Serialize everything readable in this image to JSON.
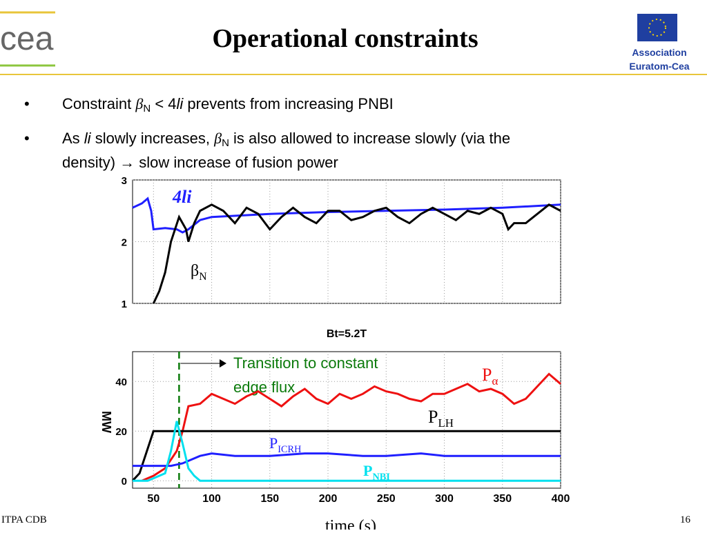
{
  "header": {
    "title": "Operational constraints",
    "logo": "cea",
    "association": [
      "Association",
      "Euratom-Cea"
    ]
  },
  "bullets": [
    [
      "Constraint ",
      "β",
      "N",
      " < 4",
      "li",
      " prevents from increasing PNBI"
    ],
    [
      "As ",
      "li",
      " slowly increases, ",
      "β",
      "N",
      " is also allowed to increase slowly (via the",
      "density) ",
      "→",
      " slow increase of fusion power"
    ]
  ],
  "footer": {
    "left": "ITPA CDB",
    "page": "16"
  },
  "chart_data": [
    {
      "type": "line",
      "xlim": [
        32,
        400
      ],
      "ylim": [
        1,
        3
      ],
      "yticks": [
        1,
        2,
        3
      ],
      "grid": true,
      "series": [
        {
          "name": "4li",
          "color": "#1f1fff",
          "x": [
            32,
            40,
            45,
            48,
            50,
            60,
            70,
            75,
            80,
            90,
            100,
            150,
            200,
            250,
            300,
            350,
            400
          ],
          "values": [
            2.55,
            2.62,
            2.7,
            2.5,
            2.2,
            2.22,
            2.2,
            2.15,
            2.2,
            2.35,
            2.4,
            2.45,
            2.48,
            2.5,
            2.52,
            2.55,
            2.6
          ]
        },
        {
          "name": "β",
          "name_sub": "N",
          "color": "#000000",
          "x": [
            50,
            55,
            60,
            65,
            72,
            78,
            80,
            85,
            90,
            100,
            110,
            120,
            130,
            140,
            150,
            160,
            170,
            180,
            190,
            200,
            210,
            220,
            230,
            240,
            250,
            260,
            270,
            280,
            290,
            300,
            310,
            320,
            330,
            340,
            350,
            355,
            360,
            370,
            380,
            390,
            400
          ],
          "values": [
            1.0,
            1.2,
            1.5,
            2.0,
            2.4,
            2.2,
            2.0,
            2.3,
            2.5,
            2.6,
            2.5,
            2.3,
            2.55,
            2.45,
            2.2,
            2.4,
            2.55,
            2.4,
            2.3,
            2.5,
            2.5,
            2.35,
            2.4,
            2.5,
            2.55,
            2.4,
            2.3,
            2.45,
            2.55,
            2.45,
            2.35,
            2.5,
            2.45,
            2.55,
            2.45,
            2.2,
            2.3,
            2.3,
            2.45,
            2.6,
            2.5
          ]
        }
      ]
    },
    {
      "type": "line",
      "title": "Bt=5.2T",
      "ylabel": "MW",
      "xlabel": "time (s)",
      "xlim": [
        32,
        400
      ],
      "ylim": [
        -3,
        52
      ],
      "xticks": [
        50,
        100,
        150,
        200,
        250,
        300,
        350,
        400
      ],
      "yticks": [
        0,
        20,
        40
      ],
      "grid": true,
      "annotation": {
        "text": [
          "Transition to constant",
          "edge flux"
        ],
        "color": "#0b7a0b",
        "x": 72
      },
      "series": [
        {
          "name": "P",
          "name_sub": "α",
          "color": "#ee1111",
          "x": [
            40,
            50,
            60,
            70,
            75,
            80,
            90,
            100,
            110,
            120,
            130,
            140,
            150,
            160,
            170,
            180,
            190,
            200,
            210,
            220,
            230,
            240,
            250,
            260,
            270,
            280,
            290,
            300,
            310,
            320,
            330,
            340,
            350,
            360,
            370,
            380,
            390,
            400
          ],
          "values": [
            0,
            2,
            5,
            12,
            20,
            30,
            31,
            35,
            33,
            31,
            34,
            36,
            33,
            30,
            34,
            37,
            33,
            31,
            35,
            33,
            35,
            38,
            36,
            35,
            33,
            32,
            35,
            35,
            37,
            39,
            36,
            37,
            35,
            31,
            33,
            38,
            43,
            39
          ]
        },
        {
          "name": "P",
          "name_sub": "LH",
          "color": "#000000",
          "x": [
            32,
            38,
            50,
            400
          ],
          "values": [
            0,
            3,
            20,
            20
          ]
        },
        {
          "name": "P",
          "name_sub": "ICRH",
          "color": "#1f1fff",
          "x": [
            32,
            65,
            75,
            80,
            90,
            100,
            120,
            150,
            180,
            200,
            230,
            250,
            280,
            300,
            330,
            350,
            380,
            400
          ],
          "values": [
            6,
            6,
            7,
            8,
            10,
            11,
            10,
            10,
            11,
            11,
            10,
            10,
            11,
            10,
            10,
            10,
            10,
            10
          ]
        },
        {
          "name": "P",
          "name_sub": "NBI",
          "color": "#00e0ee",
          "x": [
            32,
            45,
            60,
            65,
            70,
            75,
            80,
            85,
            90,
            400
          ],
          "values": [
            0,
            0,
            3,
            12,
            24,
            15,
            5,
            2,
            0,
            0
          ]
        }
      ]
    }
  ]
}
